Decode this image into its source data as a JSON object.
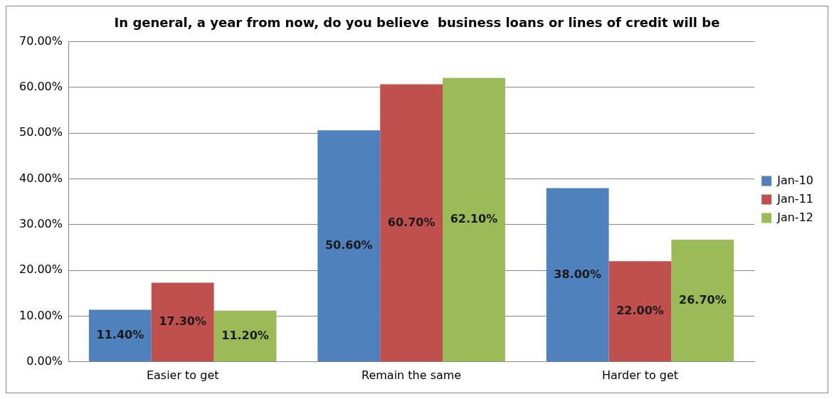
{
  "chart_data": {
    "type": "bar",
    "title": "In general, a year from now, do you believe  business loans or lines of credit will be",
    "categories": [
      "Easier to get",
      "Remain the same",
      "Harder to get"
    ],
    "series": [
      {
        "name": "Jan-10",
        "color": "#4f81bd",
        "values": [
          11.4,
          50.6,
          38.0
        ],
        "value_labels": [
          "11.40%",
          "50.60%",
          "38.00%"
        ]
      },
      {
        "name": "Jan-11",
        "color": "#c0504d",
        "values": [
          17.3,
          60.7,
          22.0
        ],
        "value_labels": [
          "17.30%",
          "60.70%",
          "22.00%"
        ]
      },
      {
        "name": "Jan-12",
        "color": "#9bbb59",
        "values": [
          11.2,
          62.1,
          26.7
        ],
        "value_labels": [
          "11.20%",
          "62.10%",
          "26.70%"
        ]
      }
    ],
    "ylim": [
      0,
      70
    ],
    "yticks": [
      {
        "value": 0,
        "label": "0.00%"
      },
      {
        "value": 10,
        "label": "10.00%"
      },
      {
        "value": 20,
        "label": "20.00%"
      },
      {
        "value": 30,
        "label": "30.00%"
      },
      {
        "value": 40,
        "label": "40.00%"
      },
      {
        "value": 50,
        "label": "50.00%"
      },
      {
        "value": 60,
        "label": "60.00%"
      },
      {
        "value": 70,
        "label": "70.00%"
      }
    ],
    "grid": "y",
    "legend": "right"
  }
}
